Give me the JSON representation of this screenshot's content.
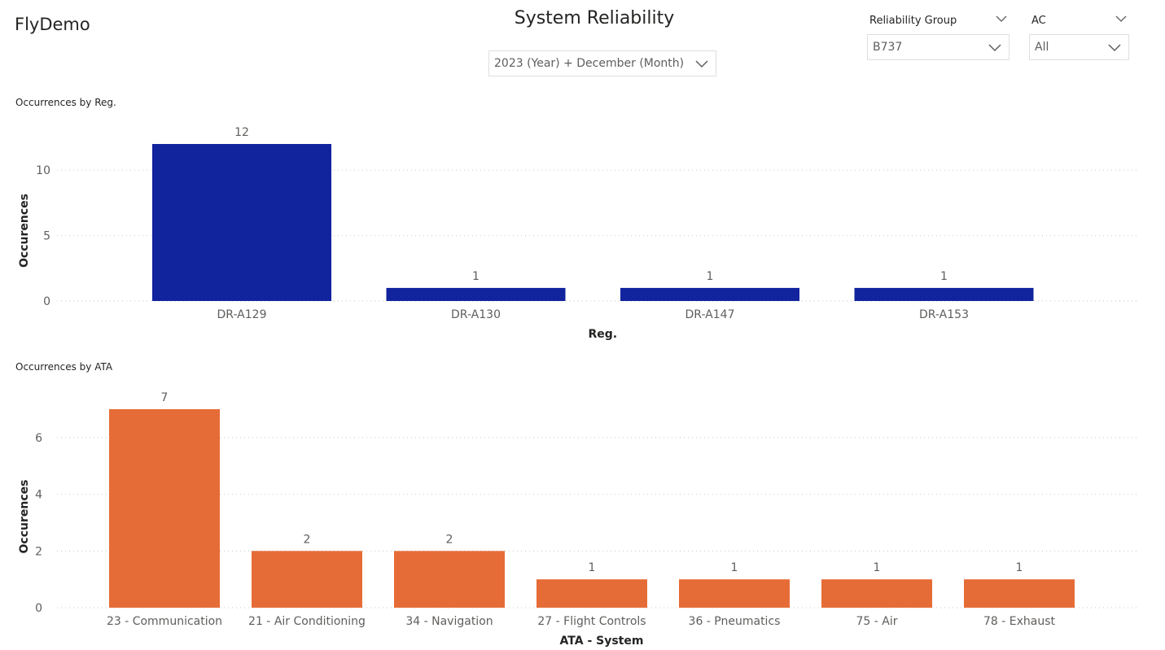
{
  "header": {
    "brand": "FlyDemo",
    "title": "System Reliability"
  },
  "filters": {
    "date": {
      "value": "2023 (Year) + December (Month)"
    },
    "reliability_group": {
      "label": "Reliability Group",
      "value": "B737"
    },
    "ac": {
      "label": "AC",
      "value": "All"
    }
  },
  "colors": {
    "bar_reg": "#12239E",
    "bar_ata": "#E66C37",
    "gridline": "#c8c6c4",
    "text": "#605e5c"
  },
  "chart_data": [
    {
      "type": "bar",
      "title": "Occurrences by Reg.",
      "xlabel": "Reg.",
      "ylabel": "Occurences",
      "categories": [
        "DR-A129",
        "DR-A130",
        "DR-A147",
        "DR-A153"
      ],
      "values": [
        12,
        1,
        1,
        1
      ],
      "ylim": [
        0,
        12
      ],
      "yticks": [
        0,
        5,
        10
      ],
      "grid": true
    },
    {
      "type": "bar",
      "title": "Occurrences by ATA",
      "xlabel": "ATA - System",
      "ylabel": "Occurences",
      "categories": [
        "23 - Communication",
        "21 - Air Conditioning",
        "34 - Navigation",
        "27 - Flight Controls",
        "36 - Pneumatics",
        "75 - Air",
        "78 - Exhaust"
      ],
      "values": [
        7,
        2,
        2,
        1,
        1,
        1,
        1
      ],
      "ylim": [
        0,
        7
      ],
      "yticks": [
        0,
        2,
        4,
        6
      ],
      "grid": true
    }
  ]
}
